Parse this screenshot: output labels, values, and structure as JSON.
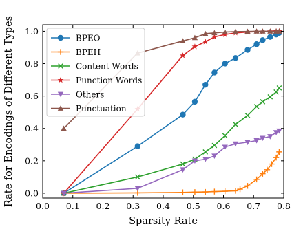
{
  "chart_data": {
    "type": "line",
    "title": "",
    "xlabel": "Sparsity Rate",
    "ylabel": "Rate for Encodings of Different Types",
    "xlim": [
      0.0,
      0.8
    ],
    "ylim": [
      -0.03,
      1.04
    ],
    "xticks": [
      "0.0",
      "0.1",
      "0.2",
      "0.3",
      "0.4",
      "0.5",
      "0.6",
      "0.7",
      "0.8"
    ],
    "yticks": [
      "0.0",
      "0.2",
      "0.4",
      "0.6",
      "0.8",
      "1.0"
    ],
    "grid": false,
    "legend_position": "top-left",
    "series": [
      {
        "name": "BPEO",
        "color": "#1f77b4",
        "marker": "circle",
        "x": [
          0.07,
          0.315,
          0.465,
          0.505,
          0.54,
          0.57,
          0.605,
          0.64,
          0.68,
          0.71,
          0.73,
          0.755,
          0.775,
          0.785
        ],
        "y": [
          0.0,
          0.29,
          0.485,
          0.565,
          0.67,
          0.745,
          0.8,
          0.835,
          0.885,
          0.92,
          0.945,
          0.965,
          0.98,
          0.99
        ]
      },
      {
        "name": "BPEH",
        "color": "#ff7f0e",
        "marker": "plus",
        "x": [
          0.07,
          0.315,
          0.465,
          0.505,
          0.54,
          0.57,
          0.605,
          0.64,
          0.655,
          0.68,
          0.71,
          0.73,
          0.745,
          0.76,
          0.775,
          0.785
        ],
        "y": [
          0.0,
          0.002,
          0.005,
          0.007,
          0.008,
          0.01,
          0.012,
          0.015,
          0.025,
          0.045,
          0.085,
          0.12,
          0.145,
          0.18,
          0.22,
          0.255
        ]
      },
      {
        "name": "Content Words",
        "color": "#2ca02c",
        "marker": "x",
        "x": [
          0.07,
          0.315,
          0.465,
          0.505,
          0.54,
          0.57,
          0.605,
          0.64,
          0.68,
          0.71,
          0.73,
          0.755,
          0.775,
          0.785
        ],
        "y": [
          0.0,
          0.1,
          0.18,
          0.21,
          0.255,
          0.295,
          0.355,
          0.425,
          0.48,
          0.535,
          0.565,
          0.595,
          0.625,
          0.65
        ]
      },
      {
        "name": "Function Words",
        "color": "#d62728",
        "marker": "star",
        "x": [
          0.07,
          0.315,
          0.465,
          0.505,
          0.54,
          0.57,
          0.605,
          0.64,
          0.68,
          0.71,
          0.73,
          0.755,
          0.775,
          0.785
        ],
        "y": [
          0.0,
          0.52,
          0.85,
          0.905,
          0.935,
          0.965,
          0.98,
          0.99,
          0.995,
          0.997,
          0.998,
          0.999,
          1.0,
          1.0
        ]
      },
      {
        "name": "Others",
        "color": "#9467bd",
        "marker": "triangle-down",
        "x": [
          0.07,
          0.315,
          0.465,
          0.505,
          0.54,
          0.57,
          0.605,
          0.64,
          0.68,
          0.71,
          0.73,
          0.755,
          0.775,
          0.785
        ],
        "y": [
          0.0,
          0.03,
          0.145,
          0.2,
          0.21,
          0.23,
          0.285,
          0.305,
          0.315,
          0.325,
          0.34,
          0.35,
          0.375,
          0.385
        ]
      },
      {
        "name": "Punctuation",
        "color": "#8c564b",
        "marker": "triangle-up",
        "x": [
          0.07,
          0.315,
          0.465,
          0.505,
          0.54,
          0.57,
          0.605,
          0.64,
          0.68,
          0.71,
          0.73,
          0.755,
          0.775,
          0.785
        ],
        "y": [
          0.4,
          0.865,
          0.94,
          0.96,
          0.985,
          0.99,
          0.995,
          0.998,
          0.999,
          1.0,
          1.0,
          1.0,
          1.0,
          1.0
        ]
      }
    ]
  }
}
